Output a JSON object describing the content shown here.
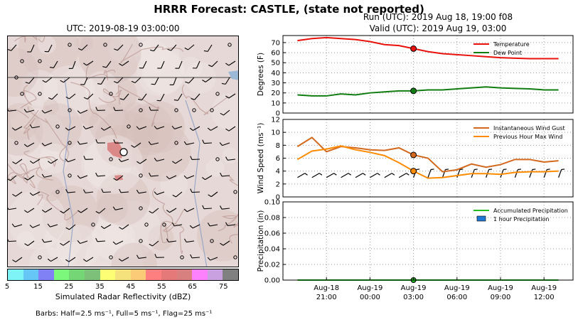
{
  "header": {
    "title": "HRRR Forecast: CASTLE, (state not reported)",
    "run": "Run (UTC): 2019 Aug 18, 19:00 f08",
    "valid": "Valid (UTC): 2019 Aug 19, 03:00"
  },
  "map": {
    "title": "UTC: 2019-08-19 03:00:00",
    "colorbar_label": "Simulated Radar Reflectivity (dBZ)",
    "colorbar_ticks": [
      "5",
      "15",
      "25",
      "35",
      "45",
      "55",
      "65",
      "75"
    ],
    "colorbar_colors": [
      "#7ff4f6",
      "#66c7f7",
      "#8081f5",
      "#7cf97c",
      "#75d675",
      "#7cc07a",
      "#fefe74",
      "#f6e27c",
      "#fbcb77",
      "#fe7f7f",
      "#e57878",
      "#d88080",
      "#fd80fd",
      "#c9a0e0",
      "#808080"
    ],
    "barbs_note": "Barbs: Half=2.5 ms⁻¹, Full=5 ms⁻¹, Flag=25 ms⁻¹"
  },
  "chart_data": [
    {
      "type": "line",
      "ylabel": "Degrees (F)",
      "ylim": [
        0,
        77
      ],
      "yticks": [
        0,
        10,
        20,
        30,
        40,
        50,
        60,
        70
      ],
      "x": [
        "2019-08-18T19:00",
        "2019-08-18T20:00",
        "2019-08-18T21:00",
        "2019-08-18T22:00",
        "2019-08-18T23:00",
        "2019-08-19T00:00",
        "2019-08-19T01:00",
        "2019-08-19T02:00",
        "2019-08-19T03:00",
        "2019-08-19T04:00",
        "2019-08-19T05:00",
        "2019-08-19T06:00",
        "2019-08-19T07:00",
        "2019-08-19T08:00",
        "2019-08-19T09:00",
        "2019-08-19T10:00",
        "2019-08-19T11:00",
        "2019-08-19T12:00",
        "2019-08-19T13:00"
      ],
      "series": [
        {
          "name": "Temperature",
          "color": "#e8110c",
          "values": [
            72,
            74,
            75,
            74,
            73,
            71,
            68,
            67,
            64,
            61,
            59,
            58,
            57,
            56,
            55,
            54.5,
            54,
            54,
            54
          ]
        },
        {
          "name": "Dew Point",
          "color": "#117d11",
          "values": [
            18,
            17,
            17,
            19,
            18,
            20,
            21,
            22,
            22,
            23,
            23,
            24,
            25,
            26,
            25,
            24.5,
            24,
            23,
            23
          ]
        }
      ],
      "marker": {
        "x": "2019-08-19T03:00",
        "values": [
          64,
          22
        ]
      },
      "legend": "top-right",
      "grid": true
    },
    {
      "type": "line",
      "ylabel": "Wind Speed (ms⁻¹)",
      "ylim": [
        0,
        12
      ],
      "yticks": [
        0,
        2,
        4,
        6,
        8,
        10,
        12
      ],
      "series": [
        {
          "name": "Instantaneous Wind Gust",
          "color": "#d2691e",
          "values": [
            7.8,
            9.2,
            7.0,
            7.8,
            7.6,
            7.3,
            7.2,
            7.6,
            6.5,
            6.0,
            3.9,
            4.2,
            5.1,
            4.6,
            5.0,
            5.8,
            5.8,
            5.4,
            5.6
          ]
        },
        {
          "name": "Previous Hour Max Wind",
          "color": "#ff8c00",
          "values": [
            5.8,
            7.1,
            7.4,
            7.9,
            7.3,
            6.9,
            6.4,
            5.3,
            4.0,
            2.9,
            3.0,
            3.3,
            3.6,
            3.6,
            3.5,
            3.8,
            3.9,
            3.9,
            4.0
          ]
        }
      ],
      "marker": {
        "x": "2019-08-19T03:00",
        "values": [
          6.5,
          4.0
        ]
      },
      "legend": "top-right",
      "grid": true,
      "barbs_row_y": 3
    },
    {
      "type": "bar",
      "ylabel": "Precipitation (in)",
      "ylim": [
        0,
        0.1
      ],
      "yticks": [
        "0.00",
        "0.02",
        "0.04",
        "0.06",
        "0.08",
        "0.10"
      ],
      "series": [
        {
          "name": "Accumulated Precipitation",
          "color": "#22bb22",
          "values": [
            0,
            0,
            0,
            0,
            0,
            0,
            0,
            0,
            0,
            0,
            0,
            0,
            0,
            0,
            0,
            0,
            0,
            0,
            0
          ]
        },
        {
          "name": "1 hour Precipitation",
          "color": "#1f78d4",
          "values": [
            0,
            0,
            0,
            0,
            0,
            0,
            0,
            0,
            0,
            0,
            0,
            0,
            0,
            0,
            0,
            0,
            0,
            0,
            0
          ]
        }
      ],
      "legend": "top-right",
      "grid": true,
      "xtick_labels": [
        [
          "Aug-18",
          "21:00"
        ],
        [
          "Aug-19",
          "00:00"
        ],
        [
          "Aug-19",
          "03:00"
        ],
        [
          "Aug-19",
          "06:00"
        ],
        [
          "Aug-19",
          "09:00"
        ],
        [
          "Aug-19",
          "12:00"
        ]
      ]
    }
  ]
}
